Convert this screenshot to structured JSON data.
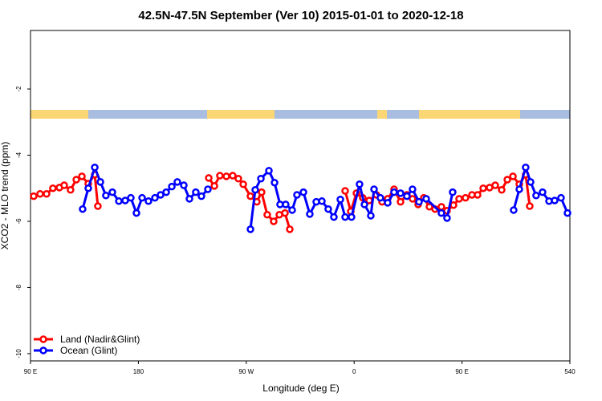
{
  "chart_data": {
    "type": "line",
    "title": "42.5N-47.5N September (Ver 10)   2015-01-01 to 2020-12-18",
    "x_label": "Longitude (deg E)",
    "y_label": "XCO2 - MLO trend (ppm)",
    "xlim": [
      90,
      540
    ],
    "xticks": [
      {
        "value": 90,
        "label": "90 E"
      },
      180,
      {
        "value": 270,
        "label": "90 W"
      },
      {
        "value": 360,
        "label": "0"
      },
      {
        "value": 450,
        "label": "90 E"
      },
      540
    ],
    "ylim": [
      -10.22,
      -0.23
    ],
    "yticks": [
      -10,
      -8,
      -6,
      -4,
      -2
    ],
    "legend": "bottom-left",
    "series": [
      {
        "name": "Land (Nadir&Glint)",
        "color": "#ff0000",
        "x": [
          92.7,
          98.0,
          103.4,
          108.7,
          114.1,
          118.1,
          123.4,
          128.2,
          132.9,
          138.2,
          143.6,
          146.2,
          null,
          238.7,
          243.4,
          248.0,
          253.4,
          258.7,
          263.4,
          267.5,
          273.5,
          278.8,
          282.8,
          287.5,
          292.9,
          297.6,
          302.3,
          306.3,
          null,
          352.5,
          357.2,
          361.9,
          367.2,
          372.6,
          378.6,
          383.3,
          388.0,
          393.3,
          398.7,
          404.0,
          408.7,
          413.4,
          418.1,
          422.8,
          427.5,
          432.8,
          437.5,
          442.9,
          447.6,
          452.9,
          458.3,
          463.0,
          467.7,
          473.0,
          477.7,
          483.1,
          487.8,
          492.5,
          497.8,
          503.1,
          506.5
        ],
        "values": [
          -5.24,
          -5.17,
          -5.17,
          -5.0,
          -4.98,
          -4.91,
          -5.05,
          -4.74,
          -4.64,
          -4.86,
          -4.59,
          -5.54,
          null,
          -4.69,
          -4.93,
          -4.62,
          -4.64,
          -4.62,
          -4.71,
          -4.88,
          -5.24,
          -5.41,
          -5.12,
          -5.8,
          -6.0,
          -5.8,
          -5.75,
          -6.24,
          null,
          -5.08,
          -5.7,
          -5.15,
          -5.29,
          -5.37,
          -5.2,
          -5.41,
          -5.32,
          -5.03,
          -5.41,
          -5.2,
          -5.32,
          -5.49,
          -5.29,
          -5.56,
          -5.63,
          -5.56,
          -5.68,
          -5.51,
          -5.32,
          -5.29,
          -5.2,
          -5.2,
          -5.0,
          -4.98,
          -4.91,
          -5.05,
          -4.74,
          -4.64,
          -4.88,
          -4.59,
          -5.54
        ]
      },
      {
        "name": "Ocean (Glint)",
        "color": "#0000ff",
        "x": [
          133.5,
          138.2,
          143.6,
          148.3,
          152.9,
          158.3,
          163.7,
          169.0,
          173.7,
          178.4,
          183.1,
          188.4,
          193.8,
          198.5,
          203.2,
          207.9,
          212.5,
          217.9,
          222.6,
          227.9,
          232.6,
          238.0,
          null,
          273.5,
          277.5,
          282.2,
          288.9,
          293.6,
          298.2,
          302.9,
          308.3,
          312.3,
          317.7,
          323.0,
          328.4,
          333.1,
          338.4,
          343.1,
          348.5,
          352.5,
          357.8,
          364.5,
          368.6,
          373.9,
          376.6,
          381.9,
          388.0,
          393.3,
          398.7,
          404.0,
          408.7,
          414.1,
          420.1,
          432.8,
          437.5,
          442.2,
          null,
          493.1,
          497.8,
          503.1,
          507.2,
          511.8,
          517.2,
          522.6,
          527.3,
          532.6,
          538.0
        ],
        "values": [
          -5.63,
          -5.0,
          -4.37,
          -4.81,
          -5.22,
          -5.12,
          -5.39,
          -5.37,
          -5.29,
          -5.75,
          -5.29,
          -5.39,
          -5.29,
          -5.2,
          -5.12,
          -4.95,
          -4.81,
          -4.91,
          -5.32,
          -5.12,
          -5.24,
          -5.03,
          null,
          -6.24,
          -5.05,
          -4.71,
          -4.47,
          -4.83,
          -5.49,
          -5.49,
          -5.66,
          -5.2,
          -5.12,
          -5.78,
          -5.41,
          -5.39,
          -5.63,
          -5.87,
          -5.34,
          -5.87,
          -5.87,
          -4.88,
          -5.49,
          -5.83,
          -5.03,
          -5.29,
          -5.44,
          -5.12,
          -5.15,
          -5.24,
          -5.03,
          -5.41,
          -5.32,
          -5.75,
          -5.9,
          -5.12,
          null,
          -5.66,
          -5.03,
          -4.37,
          -4.81,
          -5.22,
          -5.12,
          -5.39,
          -5.37,
          -5.29,
          -5.75
        ]
      }
    ]
  }
}
